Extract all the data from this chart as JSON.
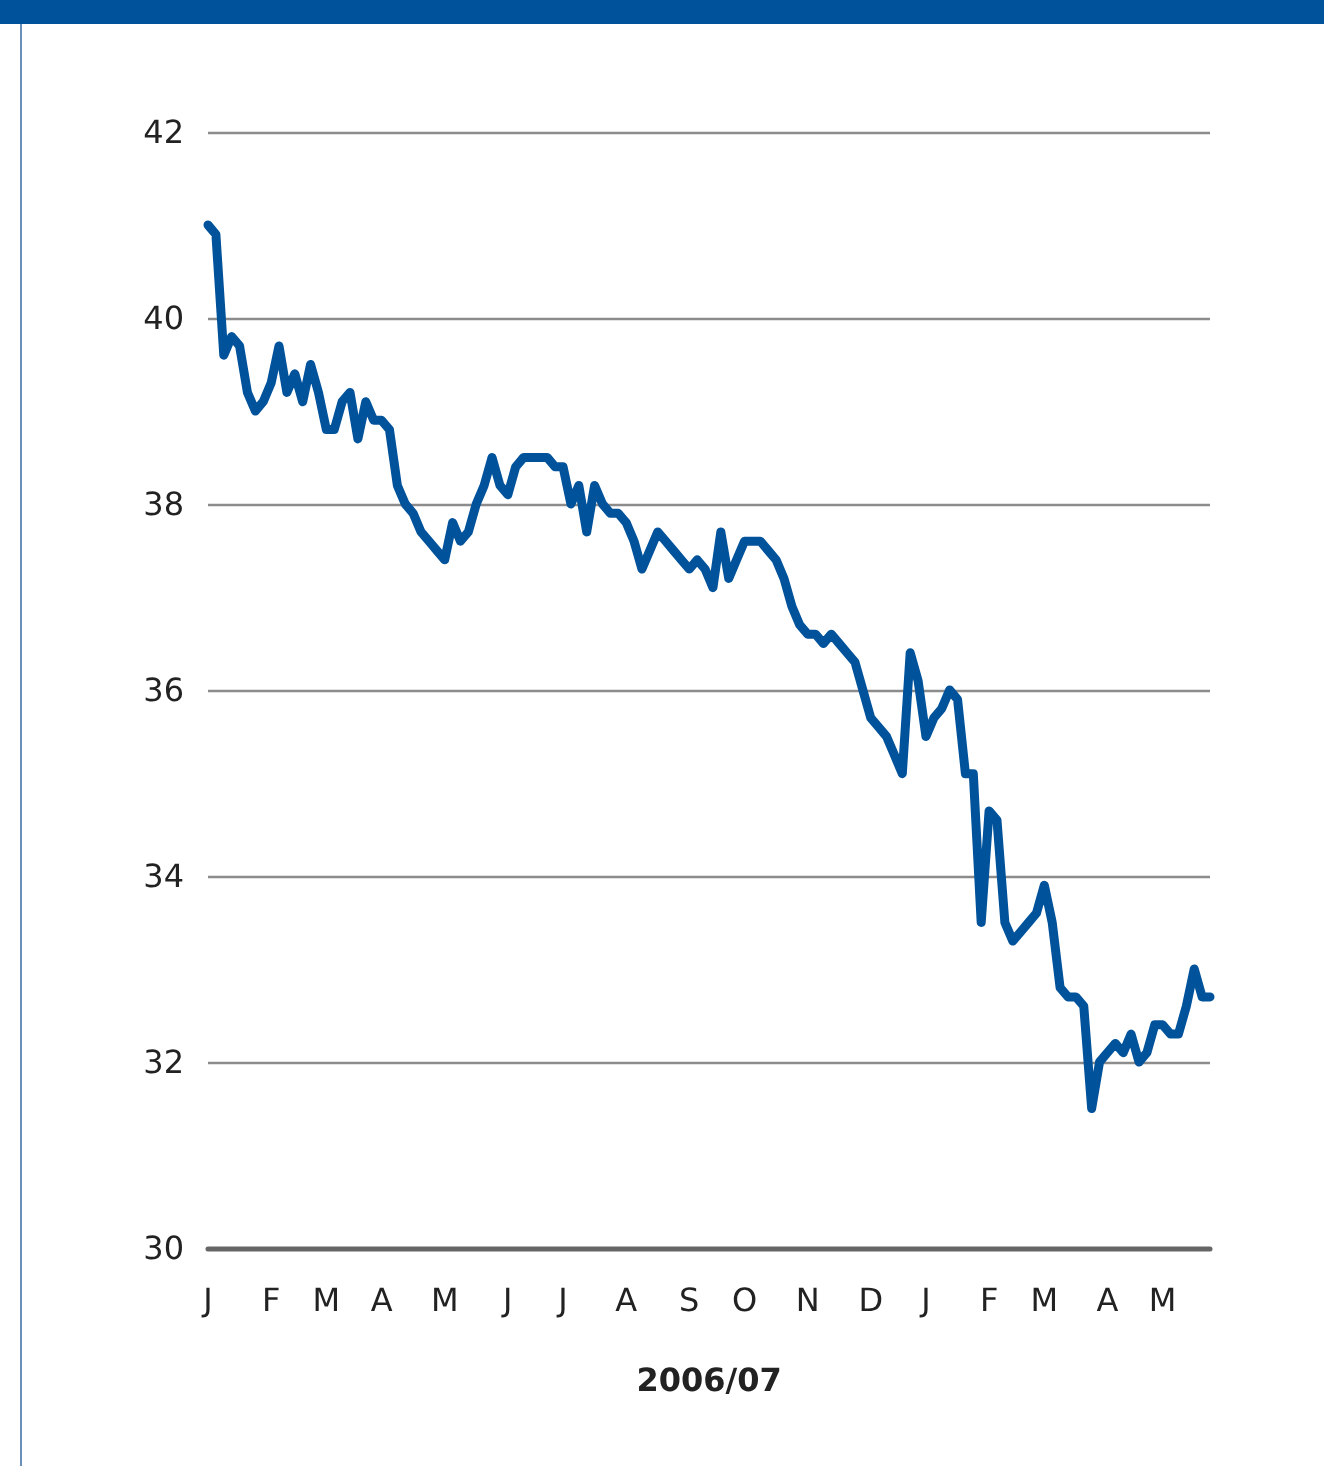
{
  "chart_data": {
    "type": "line",
    "xlabel": "2006/07",
    "categories": [
      "J",
      null,
      null,
      null,
      null,
      null,
      null,
      null,
      "F",
      null,
      null,
      null,
      null,
      null,
      null,
      "M",
      null,
      null,
      null,
      null,
      null,
      null,
      "A",
      null,
      null,
      null,
      null,
      null,
      null,
      null,
      "M",
      null,
      null,
      null,
      null,
      null,
      null,
      null,
      "J",
      null,
      null,
      null,
      null,
      null,
      null,
      "J",
      null,
      null,
      null,
      null,
      null,
      null,
      null,
      "A",
      null,
      null,
      null,
      null,
      null,
      null,
      null,
      "S",
      null,
      null,
      null,
      null,
      null,
      null,
      "O",
      null,
      null,
      null,
      null,
      null,
      null,
      null,
      "N",
      null,
      null,
      null,
      null,
      null,
      null,
      null,
      "D",
      null,
      null,
      null,
      null,
      null,
      null,
      "J",
      null,
      null,
      null,
      null,
      null,
      null,
      null,
      "F",
      null,
      null,
      null,
      null,
      null,
      null,
      "M",
      null,
      null,
      null,
      null,
      null,
      null,
      null,
      "A",
      null,
      null,
      null,
      null,
      null,
      null,
      "M",
      null,
      null,
      null,
      null,
      null,
      null
    ],
    "series": [
      {
        "color": "#00529b",
        "values": [
          41.0,
          40.9,
          39.6,
          39.8,
          39.7,
          39.2,
          39.0,
          39.1,
          39.3,
          39.7,
          39.2,
          39.4,
          39.1,
          39.5,
          39.2,
          38.8,
          38.8,
          39.1,
          39.2,
          38.7,
          39.1,
          38.9,
          38.9,
          38.8,
          38.2,
          38.0,
          37.9,
          37.7,
          37.6,
          37.5,
          37.4,
          37.8,
          37.6,
          37.7,
          38.0,
          38.2,
          38.5,
          38.2,
          38.1,
          38.4,
          38.5,
          38.5,
          38.5,
          38.5,
          38.4,
          38.4,
          38.0,
          38.2,
          37.7,
          38.2,
          38.0,
          37.9,
          37.9,
          37.8,
          37.6,
          37.3,
          37.5,
          37.7,
          37.6,
          37.5,
          37.4,
          37.3,
          37.4,
          37.3,
          37.1,
          37.7,
          37.2,
          37.4,
          37.6,
          37.6,
          37.6,
          37.5,
          37.4,
          37.2,
          36.9,
          36.7,
          36.6,
          36.6,
          36.5,
          36.6,
          36.5,
          36.4,
          36.3,
          36.0,
          35.7,
          35.6,
          35.5,
          35.3,
          35.1,
          36.4,
          36.1,
          35.5,
          35.7,
          35.8,
          36.0,
          35.9,
          35.1,
          35.1,
          33.5,
          34.7,
          34.6,
          33.5,
          33.3,
          33.4,
          33.5,
          33.6,
          33.9,
          33.5,
          32.8,
          32.7,
          32.7,
          32.6,
          31.5,
          32.0,
          32.1,
          32.2,
          32.1,
          32.3,
          32.0,
          32.1,
          32.4,
          32.4,
          32.3,
          32.3,
          32.6,
          33.0,
          32.7,
          32.7
        ]
      }
    ],
    "ylim": [
      30,
      42
    ],
    "yticks": [
      30,
      32,
      34,
      36,
      38,
      40,
      42
    ],
    "grid": "y",
    "marker": "none",
    "line_style": "solid"
  }
}
